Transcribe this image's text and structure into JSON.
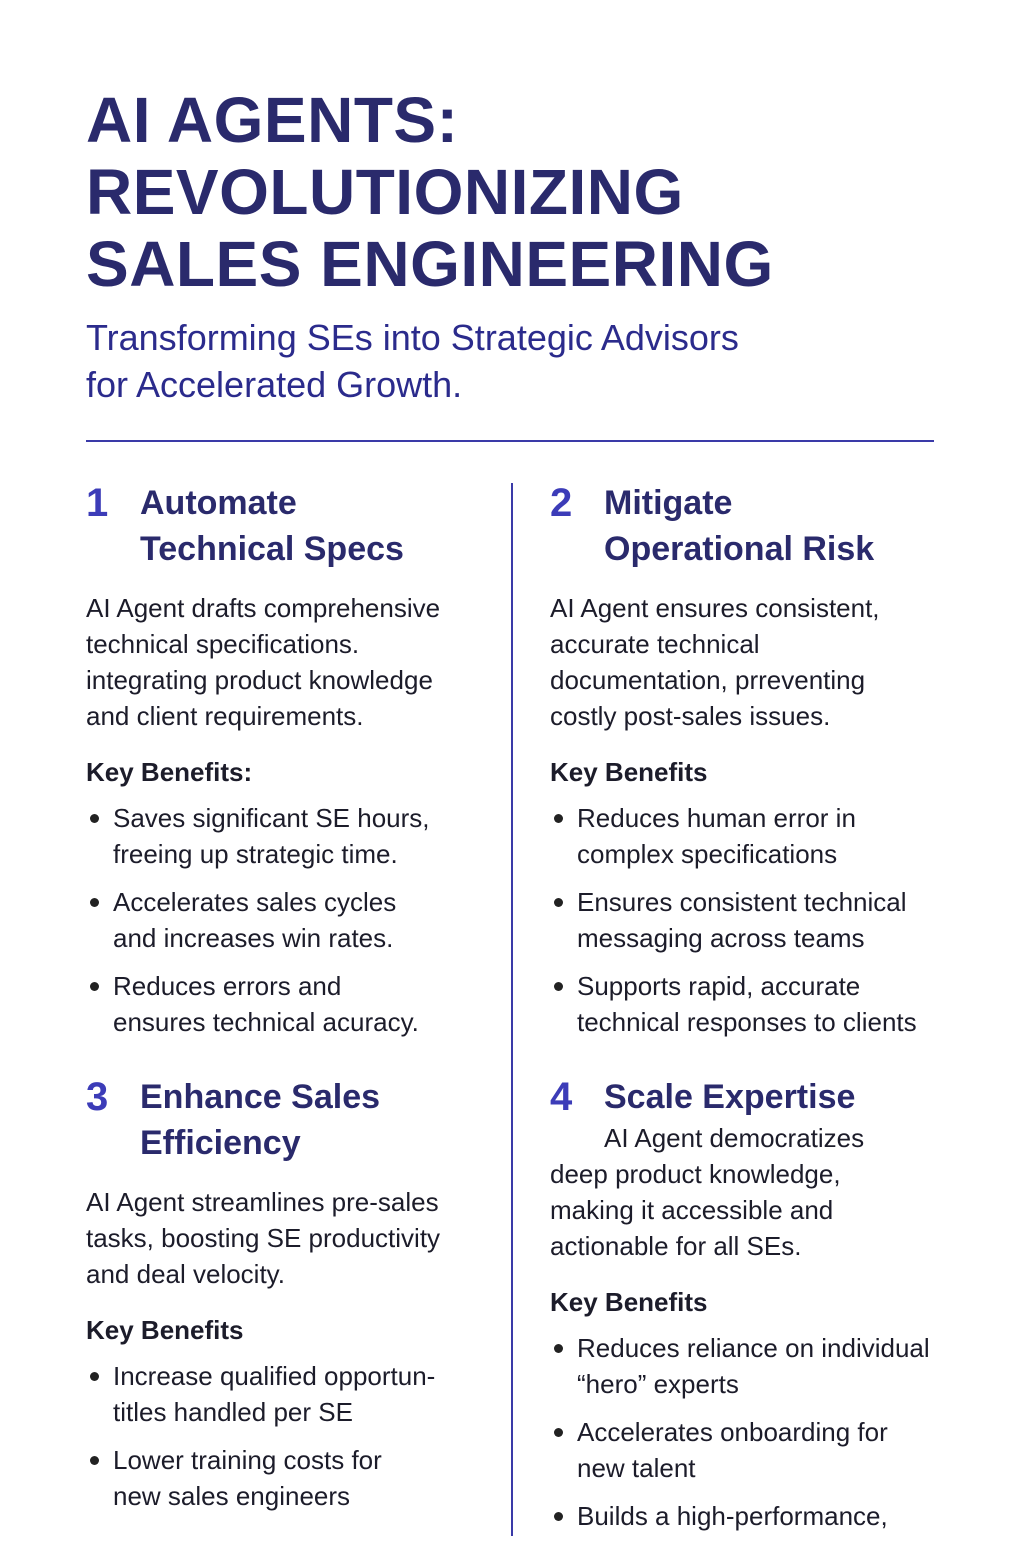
{
  "header": {
    "title_lines": [
      "AI AGENTS:",
      "REVOLUTIONIZING",
      "SALES ENGINEERING"
    ],
    "subtitle_lines": [
      "Transforming SEs into Strategic Advisors",
      "for Accelerated Growth."
    ]
  },
  "colors": {
    "title": "#2a2a6c",
    "accent": "#3c3cb8",
    "divider": "#3a3aa8",
    "text": "#1c1c2a"
  },
  "sections": [
    {
      "number": "1",
      "heading_lines": [
        "Automate",
        "Technical Specs"
      ],
      "body_lines": [
        "AI Agent drafts comprehensive",
        "technical specifications.",
        "integrating product knowledge",
        "and client requirements."
      ],
      "benefits_label": "Key Benefits:",
      "benefits": [
        [
          "Saves significant SE hours,",
          "freeing up strategic time."
        ],
        [
          "Accelerates sales cycles",
          "and increases win rates."
        ],
        [
          "Reduces errors and",
          "ensures technical acuracy."
        ]
      ]
    },
    {
      "number": "2",
      "heading_lines": [
        "Mitigate",
        "Operational Risk"
      ],
      "body_lines": [
        "AI Agent ensures consistent,",
        "accurate technical",
        "documentation, prreventing",
        "costly post-sales issues."
      ],
      "benefits_label": "Key Benefits",
      "benefits": [
        [
          "Reduces human error in",
          "complex specifications"
        ],
        [
          "Ensures consistent technical",
          "messaging across teams"
        ],
        [
          "Supports rapid, accurate",
          "technical responses to clients"
        ]
      ]
    },
    {
      "number": "3",
      "heading_lines": [
        "Enhance Sales",
        "Efficiency"
      ],
      "body_lines": [
        "AI Agent streamlines pre-sales",
        "tasks, boosting SE productivity",
        "and deal velocity."
      ],
      "benefits_label": "Key Benefits",
      "benefits": [
        [
          "Increase qualified opportun-",
          "titles handled per SE"
        ],
        [
          "Lower training costs for",
          "new sales engineers"
        ]
      ]
    },
    {
      "number": "4",
      "heading_lines": [
        "Scale Expertise"
      ],
      "body_lines": [
        "AI Agent democratizes",
        "deep product knowledge,",
        "making it accessible and",
        "actionable for all SEs."
      ],
      "benefits_label": "Key Benefits",
      "benefits": [
        [
          "Reduces reliance on individual",
          "“hero” experts"
        ],
        [
          "Accelerates onboarding for",
          "new talent"
        ],
        [
          "Builds a high-performance,"
        ]
      ]
    }
  ]
}
